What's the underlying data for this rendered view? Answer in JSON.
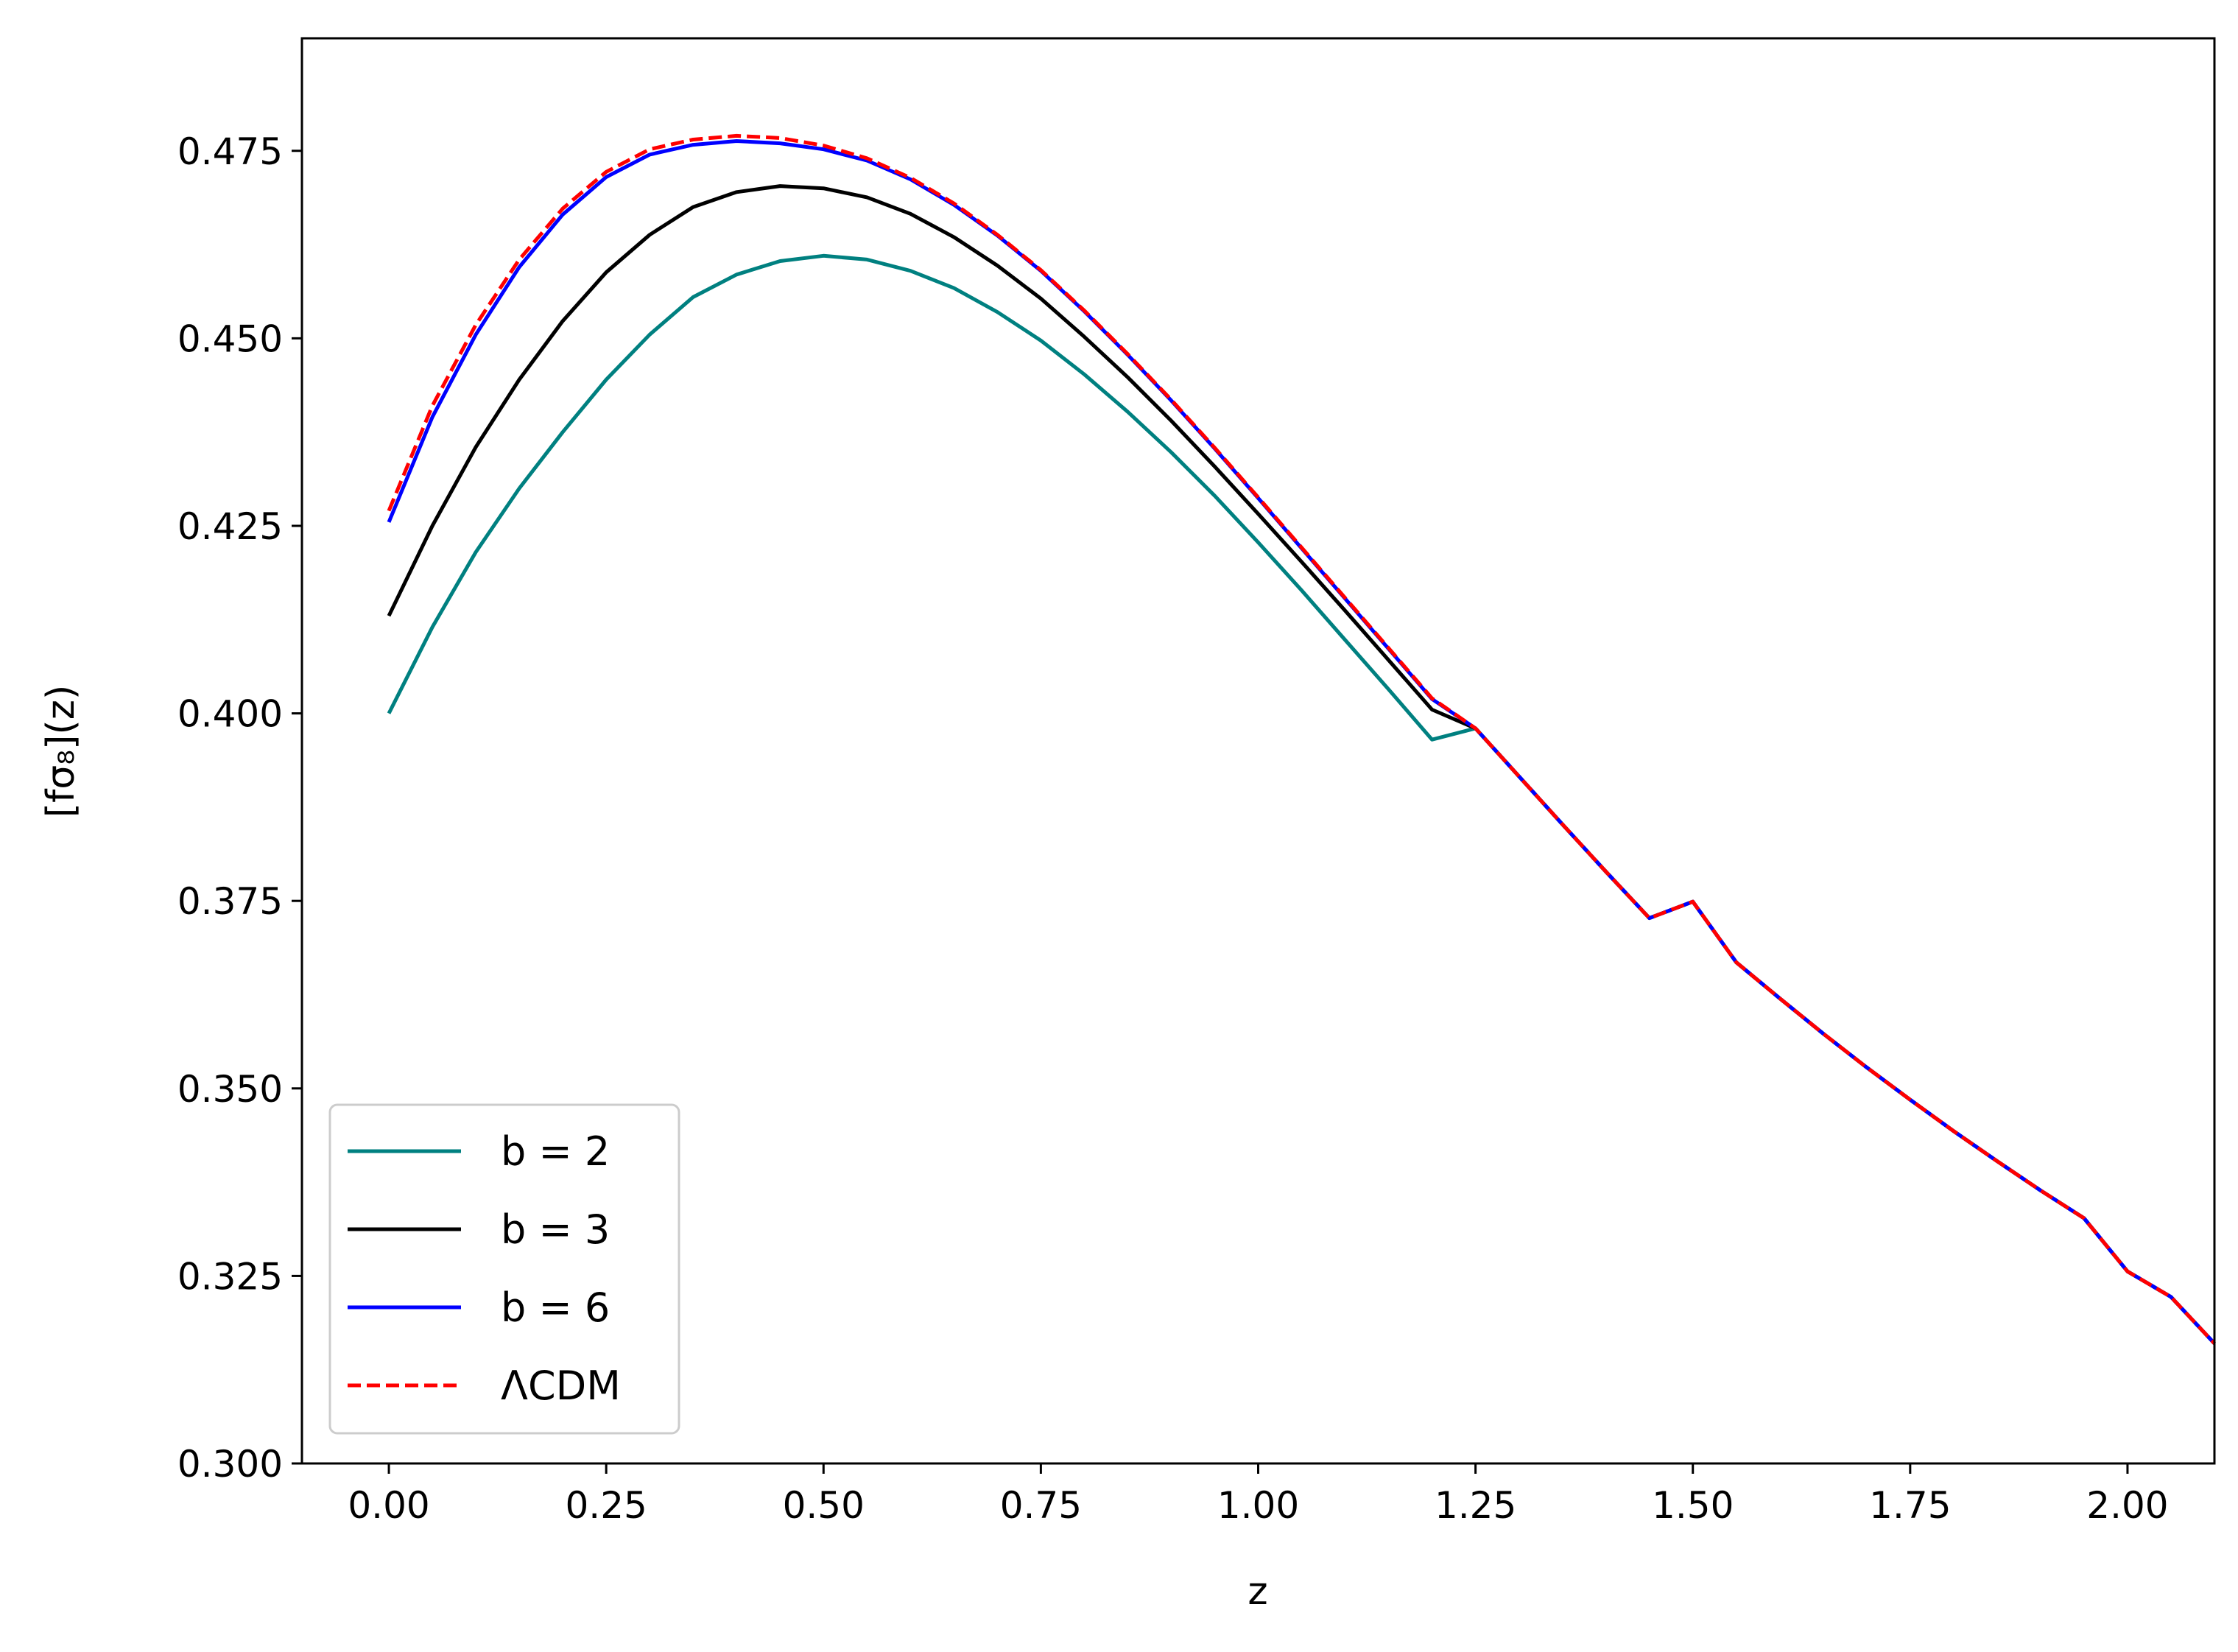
{
  "chart_data": {
    "type": "line",
    "xlabel": "z",
    "ylabel": "[fσ₈](z)",
    "xlim": [
      -0.1,
      2.1
    ],
    "ylim": [
      0.3,
      0.49
    ],
    "xticks": [
      "0.00",
      "0.25",
      "0.50",
      "0.75",
      "1.00",
      "1.25",
      "1.50",
      "1.75",
      "2.00"
    ],
    "yticks": [
      "0.300",
      "0.325",
      "0.350",
      "0.375",
      "0.400",
      "0.425",
      "0.450",
      "0.475"
    ],
    "grid": false,
    "legend_position": "lower-left",
    "x": [
      0.0,
      0.05,
      0.1,
      0.15,
      0.2,
      0.25,
      0.3,
      0.35,
      0.4,
      0.45,
      0.5,
      0.55,
      0.6,
      0.65,
      0.7,
      0.75,
      0.8,
      0.85,
      0.9,
      0.95,
      1.0,
      1.05,
      1.1,
      1.15,
      1.2,
      1.25,
      1.3,
      1.35,
      1.4,
      1.45,
      1.5,
      1.55,
      1.6,
      1.65,
      1.7,
      1.75,
      1.8,
      1.85,
      1.9,
      1.95,
      2.0,
      2.05,
      2.1
    ],
    "series": [
      {
        "name": "b = 2",
        "color": "#008080",
        "dash": "solid",
        "values": [
          0.4,
          0.4115,
          0.4215,
          0.43,
          0.4375,
          0.4445,
          0.4505,
          0.4555,
          0.4585,
          0.4603,
          0.461,
          0.4605,
          0.459,
          0.4567,
          0.4535,
          0.4497,
          0.4452,
          0.4402,
          0.4348,
          0.429,
          0.4228,
          0.4164,
          0.4098,
          0.4032,
          0.3965,
          0.398,
          0.3916,
          0.3852,
          0.3789,
          0.3727,
          0.3749,
          0.3668,
          0.362,
          0.3573,
          0.3528,
          0.3485,
          0.3443,
          0.3403,
          0.3364,
          0.3327,
          0.3256,
          0.3222,
          0.316
        ]
      },
      {
        "name": "b = 3",
        "color": "#000000",
        "dash": "solid",
        "values": [
          0.413,
          0.425,
          0.4355,
          0.4445,
          0.4523,
          0.4588,
          0.4638,
          0.4675,
          0.4695,
          0.4703,
          0.47,
          0.4688,
          0.4666,
          0.4635,
          0.4597,
          0.4553,
          0.4502,
          0.4448,
          0.439,
          0.4329,
          0.4266,
          0.4202,
          0.4137,
          0.4071,
          0.4005,
          0.398,
          0.3916,
          0.3852,
          0.3789,
          0.3727,
          0.3749,
          0.3668,
          0.362,
          0.3573,
          0.3528,
          0.3485,
          0.3443,
          0.3403,
          0.3364,
          0.3327,
          0.3256,
          0.3222,
          0.316
        ]
      },
      {
        "name": "b = 6",
        "color": "#0000ff",
        "dash": "solid",
        "values": [
          0.4255,
          0.4395,
          0.4505,
          0.4595,
          0.4665,
          0.4715,
          0.4745,
          0.4758,
          0.4763,
          0.476,
          0.4752,
          0.4737,
          0.4712,
          0.4678,
          0.4637,
          0.459,
          0.4536,
          0.4478,
          0.4417,
          0.4353,
          0.4287,
          0.422,
          0.4153,
          0.4086,
          0.4019,
          0.398,
          0.3916,
          0.3852,
          0.3789,
          0.3727,
          0.3749,
          0.3668,
          0.362,
          0.3573,
          0.3528,
          0.3485,
          0.3443,
          0.3403,
          0.3364,
          0.3327,
          0.3256,
          0.3222,
          0.316
        ]
      },
      {
        "name": "ΛCDM",
        "color": "#ff0000",
        "dash": "dashed",
        "values": [
          0.427,
          0.441,
          0.4518,
          0.4605,
          0.4673,
          0.4722,
          0.4752,
          0.4765,
          0.477,
          0.4767,
          0.4757,
          0.474,
          0.4714,
          0.468,
          0.4638,
          0.4591,
          0.4537,
          0.4479,
          0.4418,
          0.4354,
          0.4288,
          0.4221,
          0.4154,
          0.4087,
          0.402,
          0.398,
          0.3916,
          0.3852,
          0.3789,
          0.3727,
          0.3749,
          0.3668,
          0.362,
          0.3573,
          0.3528,
          0.3485,
          0.3443,
          0.3403,
          0.3364,
          0.3327,
          0.3256,
          0.3222,
          0.316
        ]
      }
    ]
  }
}
